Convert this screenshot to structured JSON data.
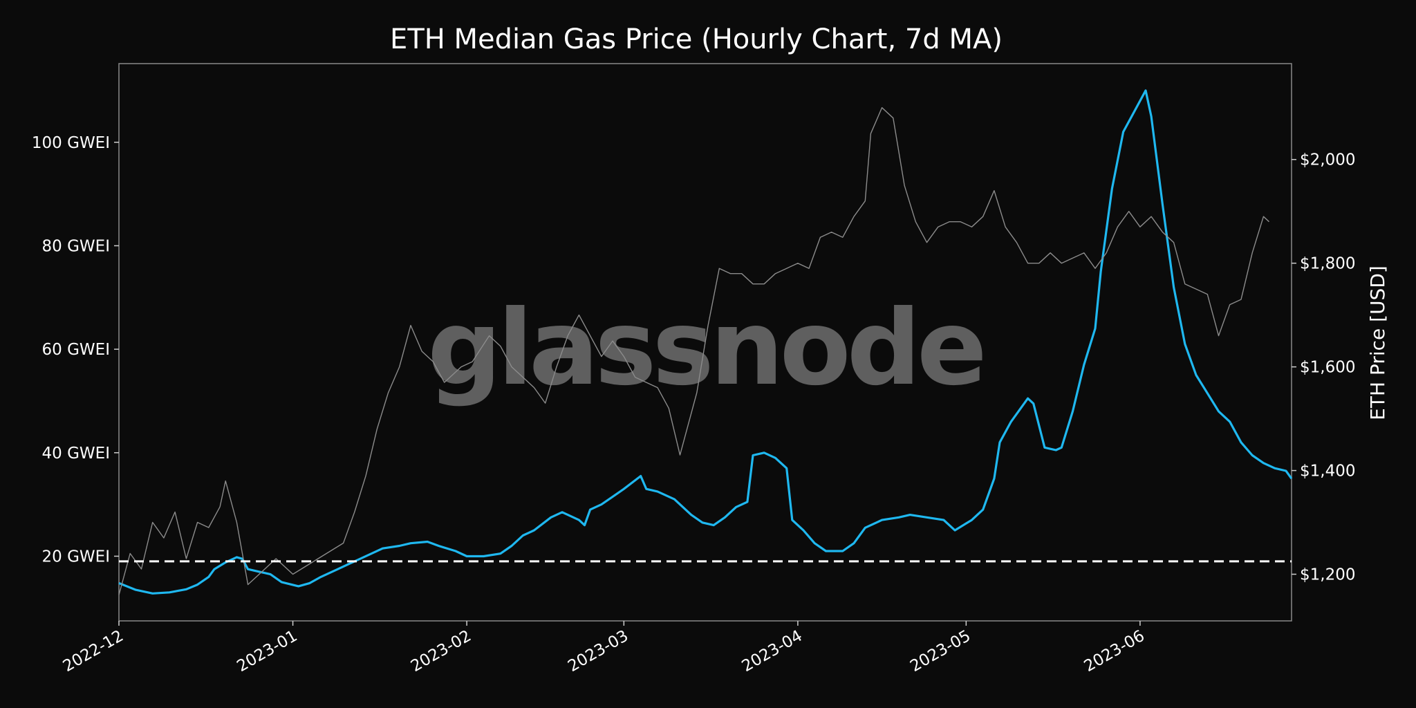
{
  "chart_data": {
    "type": "line",
    "title": "ETH Median Gas Price (Hourly Chart, 7d MA)",
    "watermark": "glassnode",
    "xlabel": "",
    "ylabel_left": "",
    "ylabel_right": "ETH Price [USD]",
    "x_ticks": [
      "2022-12",
      "2023-01",
      "2023-02",
      "2023-03",
      "2023-04",
      "2023-05",
      "2023-06"
    ],
    "y_left": {
      "ticks": [
        "20 GWEI",
        "40 GWEI",
        "60 GWEI",
        "80 GWEI",
        "100 GWEI"
      ],
      "tick_values": [
        20,
        40,
        60,
        80,
        100
      ],
      "range": [
        7.5,
        115.2
      ]
    },
    "y_right": {
      "ticks": [
        "$1,200",
        "$1,400",
        "$1,600",
        "$1,800",
        "$2,000"
      ],
      "tick_values": [
        1200,
        1400,
        1600,
        1800,
        2000
      ],
      "range": [
        1110,
        2185
      ]
    },
    "x_range": [
      "2022-12-01",
      "2023-06-28"
    ],
    "threshold_line": {
      "value": 19,
      "style": "dashed",
      "color": "#ffffff"
    },
    "grid": false,
    "series": [
      {
        "name": "",
        "axis": "left",
        "color": "#1fb8f0",
        "points": [
          [
            "2022-12-01",
            14.8
          ],
          [
            "2022-12-04",
            13.5
          ],
          [
            "2022-12-07",
            12.8
          ],
          [
            "2022-12-10",
            13.0
          ],
          [
            "2022-12-13",
            13.6
          ],
          [
            "2022-12-15",
            14.5
          ],
          [
            "2022-12-17",
            16.0
          ],
          [
            "2022-12-18",
            17.5
          ],
          [
            "2022-12-20",
            18.8
          ],
          [
            "2022-12-22",
            19.8
          ],
          [
            "2022-12-23",
            19.5
          ],
          [
            "2022-12-24",
            17.5
          ],
          [
            "2022-12-26",
            17.0
          ],
          [
            "2022-12-28",
            16.5
          ],
          [
            "2022-12-30",
            15.0
          ],
          [
            "2023-01-02",
            14.2
          ],
          [
            "2023-01-04",
            14.8
          ],
          [
            "2023-01-06",
            16.0
          ],
          [
            "2023-01-09",
            17.5
          ],
          [
            "2023-01-12",
            19.0
          ],
          [
            "2023-01-15",
            20.5
          ],
          [
            "2023-01-17",
            21.5
          ],
          [
            "2023-01-20",
            22.0
          ],
          [
            "2023-01-22",
            22.5
          ],
          [
            "2023-01-25",
            22.8
          ],
          [
            "2023-01-27",
            22.0
          ],
          [
            "2023-01-30",
            21.0
          ],
          [
            "2023-02-01",
            20.0
          ],
          [
            "2023-02-04",
            20.0
          ],
          [
            "2023-02-07",
            20.5
          ],
          [
            "2023-02-09",
            22.0
          ],
          [
            "2023-02-11",
            24.0
          ],
          [
            "2023-02-13",
            25.0
          ],
          [
            "2023-02-16",
            27.5
          ],
          [
            "2023-02-18",
            28.5
          ],
          [
            "2023-02-21",
            27.0
          ],
          [
            "2023-02-22",
            26.0
          ],
          [
            "2023-02-23",
            29.0
          ],
          [
            "2023-02-25",
            30.0
          ],
          [
            "2023-02-27",
            31.5
          ],
          [
            "2023-03-01",
            33.0
          ],
          [
            "2023-03-04",
            35.5
          ],
          [
            "2023-03-05",
            33.0
          ],
          [
            "2023-03-07",
            32.5
          ],
          [
            "2023-03-10",
            31.0
          ],
          [
            "2023-03-13",
            28.0
          ],
          [
            "2023-03-15",
            26.5
          ],
          [
            "2023-03-17",
            26.0
          ],
          [
            "2023-03-19",
            27.5
          ],
          [
            "2023-03-21",
            29.5
          ],
          [
            "2023-03-23",
            30.5
          ],
          [
            "2023-03-24",
            39.5
          ],
          [
            "2023-03-26",
            40.0
          ],
          [
            "2023-03-28",
            39.0
          ],
          [
            "2023-03-30",
            37.0
          ],
          [
            "2023-03-31",
            27.0
          ],
          [
            "2023-04-02",
            25.0
          ],
          [
            "2023-04-04",
            22.5
          ],
          [
            "2023-04-06",
            21.0
          ],
          [
            "2023-04-09",
            21.0
          ],
          [
            "2023-04-11",
            22.5
          ],
          [
            "2023-04-13",
            25.5
          ],
          [
            "2023-04-16",
            27.0
          ],
          [
            "2023-04-19",
            27.5
          ],
          [
            "2023-04-21",
            28.0
          ],
          [
            "2023-04-24",
            27.5
          ],
          [
            "2023-04-27",
            27.0
          ],
          [
            "2023-04-29",
            25.0
          ],
          [
            "2023-05-02",
            27.0
          ],
          [
            "2023-05-04",
            29.0
          ],
          [
            "2023-05-06",
            35.0
          ],
          [
            "2023-05-07",
            42.0
          ],
          [
            "2023-05-09",
            46.0
          ],
          [
            "2023-05-11",
            49.0
          ],
          [
            "2023-05-12",
            50.5
          ],
          [
            "2023-05-13",
            49.5
          ],
          [
            "2023-05-15",
            41.0
          ],
          [
            "2023-05-17",
            40.5
          ],
          [
            "2023-05-18",
            41.0
          ],
          [
            "2023-05-20",
            48.0
          ],
          [
            "2023-05-22",
            57.0
          ],
          [
            "2023-05-24",
            64.0
          ],
          [
            "2023-05-25",
            75.0
          ],
          [
            "2023-05-27",
            91.0
          ],
          [
            "2023-05-29",
            102.0
          ],
          [
            "2023-05-31",
            106.0
          ],
          [
            "2023-06-02",
            110.0
          ],
          [
            "2023-06-03",
            105.0
          ],
          [
            "2023-06-05",
            88.0
          ],
          [
            "2023-06-07",
            72.0
          ],
          [
            "2023-06-09",
            61.0
          ],
          [
            "2023-06-11",
            55.0
          ],
          [
            "2023-06-13",
            51.5
          ],
          [
            "2023-06-15",
            48.0
          ],
          [
            "2023-06-17",
            46.0
          ],
          [
            "2023-06-19",
            42.0
          ],
          [
            "2023-06-21",
            39.5
          ],
          [
            "2023-06-23",
            38.0
          ],
          [
            "2023-06-25",
            37.0
          ],
          [
            "2023-06-27",
            36.5
          ],
          [
            "2023-06-28",
            35.0
          ]
        ]
      },
      {
        "name": "",
        "axis": "right",
        "color": "#8c8c8c",
        "points": [
          [
            "2022-12-01",
            1160
          ],
          [
            "2022-12-03",
            1240
          ],
          [
            "2022-12-05",
            1210
          ],
          [
            "2022-12-07",
            1300
          ],
          [
            "2022-12-09",
            1270
          ],
          [
            "2022-12-11",
            1320
          ],
          [
            "2022-12-13",
            1230
          ],
          [
            "2022-12-15",
            1300
          ],
          [
            "2022-12-17",
            1290
          ],
          [
            "2022-12-19",
            1330
          ],
          [
            "2022-12-20",
            1380
          ],
          [
            "2022-12-22",
            1300
          ],
          [
            "2022-12-24",
            1180
          ],
          [
            "2022-12-26",
            1200
          ],
          [
            "2022-12-29",
            1230
          ],
          [
            "2023-01-01",
            1200
          ],
          [
            "2023-01-04",
            1220
          ],
          [
            "2023-01-07",
            1240
          ],
          [
            "2023-01-10",
            1260
          ],
          [
            "2023-01-12",
            1320
          ],
          [
            "2023-01-14",
            1390
          ],
          [
            "2023-01-16",
            1480
          ],
          [
            "2023-01-18",
            1550
          ],
          [
            "2023-01-20",
            1600
          ],
          [
            "2023-01-22",
            1680
          ],
          [
            "2023-01-24",
            1630
          ],
          [
            "2023-01-26",
            1610
          ],
          [
            "2023-01-28",
            1570
          ],
          [
            "2023-01-31",
            1600
          ],
          [
            "2023-02-02",
            1610
          ],
          [
            "2023-02-05",
            1660
          ],
          [
            "2023-02-07",
            1640
          ],
          [
            "2023-02-09",
            1600
          ],
          [
            "2023-02-11",
            1580
          ],
          [
            "2023-02-13",
            1560
          ],
          [
            "2023-02-15",
            1530
          ],
          [
            "2023-02-17",
            1600
          ],
          [
            "2023-02-19",
            1660
          ],
          [
            "2023-02-21",
            1700
          ],
          [
            "2023-02-23",
            1660
          ],
          [
            "2023-02-25",
            1620
          ],
          [
            "2023-02-27",
            1650
          ],
          [
            "2023-03-01",
            1620
          ],
          [
            "2023-03-03",
            1580
          ],
          [
            "2023-03-05",
            1570
          ],
          [
            "2023-03-07",
            1560
          ],
          [
            "2023-03-09",
            1520
          ],
          [
            "2023-03-11",
            1430
          ],
          [
            "2023-03-12",
            1470
          ],
          [
            "2023-03-14",
            1550
          ],
          [
            "2023-03-16",
            1680
          ],
          [
            "2023-03-18",
            1790
          ],
          [
            "2023-03-20",
            1780
          ],
          [
            "2023-03-22",
            1780
          ],
          [
            "2023-03-24",
            1760
          ],
          [
            "2023-03-26",
            1760
          ],
          [
            "2023-03-28",
            1780
          ],
          [
            "2023-03-30",
            1790
          ],
          [
            "2023-04-01",
            1800
          ],
          [
            "2023-04-03",
            1790
          ],
          [
            "2023-04-05",
            1850
          ],
          [
            "2023-04-07",
            1860
          ],
          [
            "2023-04-09",
            1850
          ],
          [
            "2023-04-11",
            1890
          ],
          [
            "2023-04-13",
            1920
          ],
          [
            "2023-04-14",
            2050
          ],
          [
            "2023-04-16",
            2100
          ],
          [
            "2023-04-18",
            2080
          ],
          [
            "2023-04-20",
            1950
          ],
          [
            "2023-04-22",
            1880
          ],
          [
            "2023-04-24",
            1840
          ],
          [
            "2023-04-26",
            1870
          ],
          [
            "2023-04-28",
            1880
          ],
          [
            "2023-04-30",
            1880
          ],
          [
            "2023-05-02",
            1870
          ],
          [
            "2023-05-04",
            1890
          ],
          [
            "2023-05-06",
            1940
          ],
          [
            "2023-05-08",
            1870
          ],
          [
            "2023-05-10",
            1840
          ],
          [
            "2023-05-12",
            1800
          ],
          [
            "2023-05-14",
            1800
          ],
          [
            "2023-05-16",
            1820
          ],
          [
            "2023-05-18",
            1800
          ],
          [
            "2023-05-20",
            1810
          ],
          [
            "2023-05-22",
            1820
          ],
          [
            "2023-05-24",
            1790
          ],
          [
            "2023-05-26",
            1820
          ],
          [
            "2023-05-28",
            1870
          ],
          [
            "2023-05-30",
            1900
          ],
          [
            "2023-06-01",
            1870
          ],
          [
            "2023-06-03",
            1890
          ],
          [
            "2023-06-05",
            1860
          ],
          [
            "2023-06-07",
            1840
          ],
          [
            "2023-06-09",
            1760
          ],
          [
            "2023-06-11",
            1750
          ],
          [
            "2023-06-13",
            1740
          ],
          [
            "2023-06-15",
            1660
          ],
          [
            "2023-06-17",
            1720
          ],
          [
            "2023-06-19",
            1730
          ],
          [
            "2023-06-21",
            1820
          ],
          [
            "2023-06-23",
            1890
          ],
          [
            "2023-06-24",
            1880
          ]
        ]
      }
    ]
  }
}
